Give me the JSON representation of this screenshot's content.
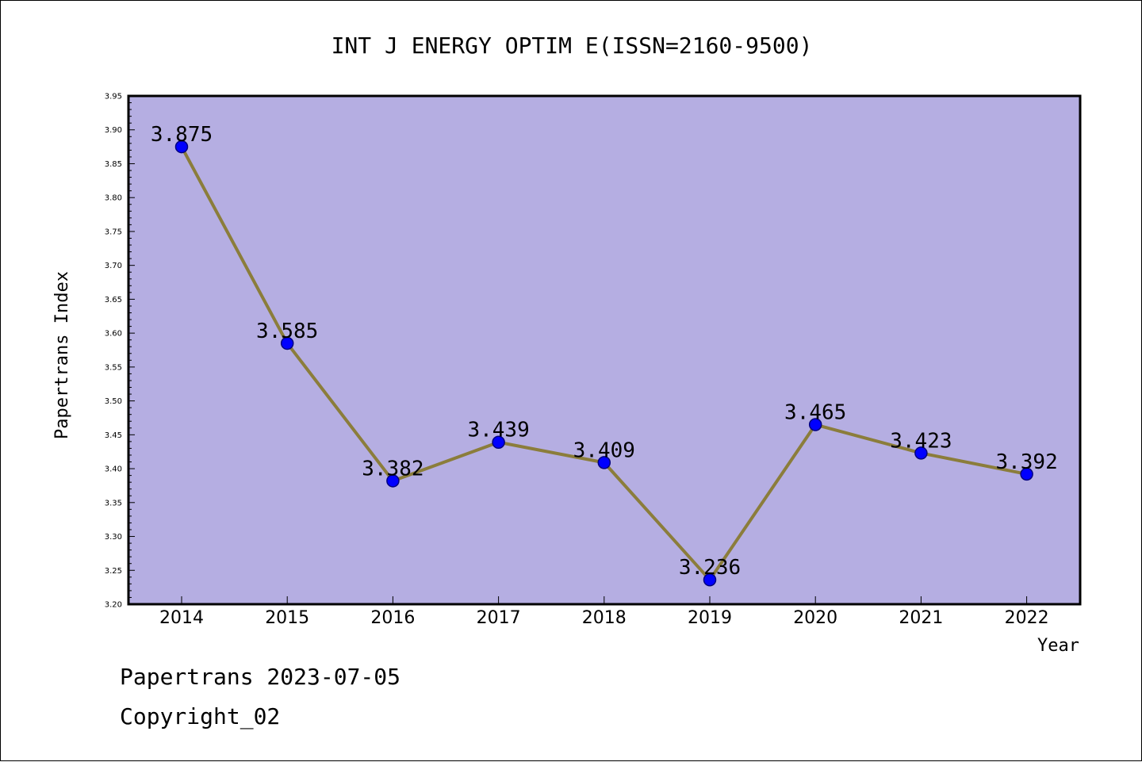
{
  "colors": {
    "plot_background": "#b5aee2",
    "line": "#8b7d3b",
    "marker_fill": "#0000ff",
    "marker_edge": "#000080",
    "axis": "#000000"
  },
  "chart_data": {
    "type": "line",
    "title": "INT J ENERGY OPTIM E(ISSN=2160-9500)",
    "xlabel": "Year",
    "ylabel": "Papertrans Index",
    "categories": [
      "2014",
      "2015",
      "2016",
      "2017",
      "2018",
      "2019",
      "2020",
      "2021",
      "2022"
    ],
    "values": [
      3.875,
      3.585,
      3.382,
      3.439,
      3.409,
      3.236,
      3.465,
      3.423,
      3.392
    ],
    "data_labels": [
      "3.875",
      "3.585",
      "3.382",
      "3.439",
      "3.409",
      "3.236",
      "3.465",
      "3.423",
      "3.392"
    ],
    "ylim": [
      3.2,
      3.95
    ],
    "yticks": [
      "3.20",
      "3.25",
      "3.30",
      "3.35",
      "3.40",
      "3.45",
      "3.50",
      "3.55",
      "3.60",
      "3.65",
      "3.70",
      "3.75",
      "3.80",
      "3.85",
      "3.90",
      "3.95"
    ],
    "grid": false,
    "legend": "none"
  },
  "footer": {
    "line1": "Papertrans 2023-07-05",
    "line2": "Copyright_02"
  }
}
